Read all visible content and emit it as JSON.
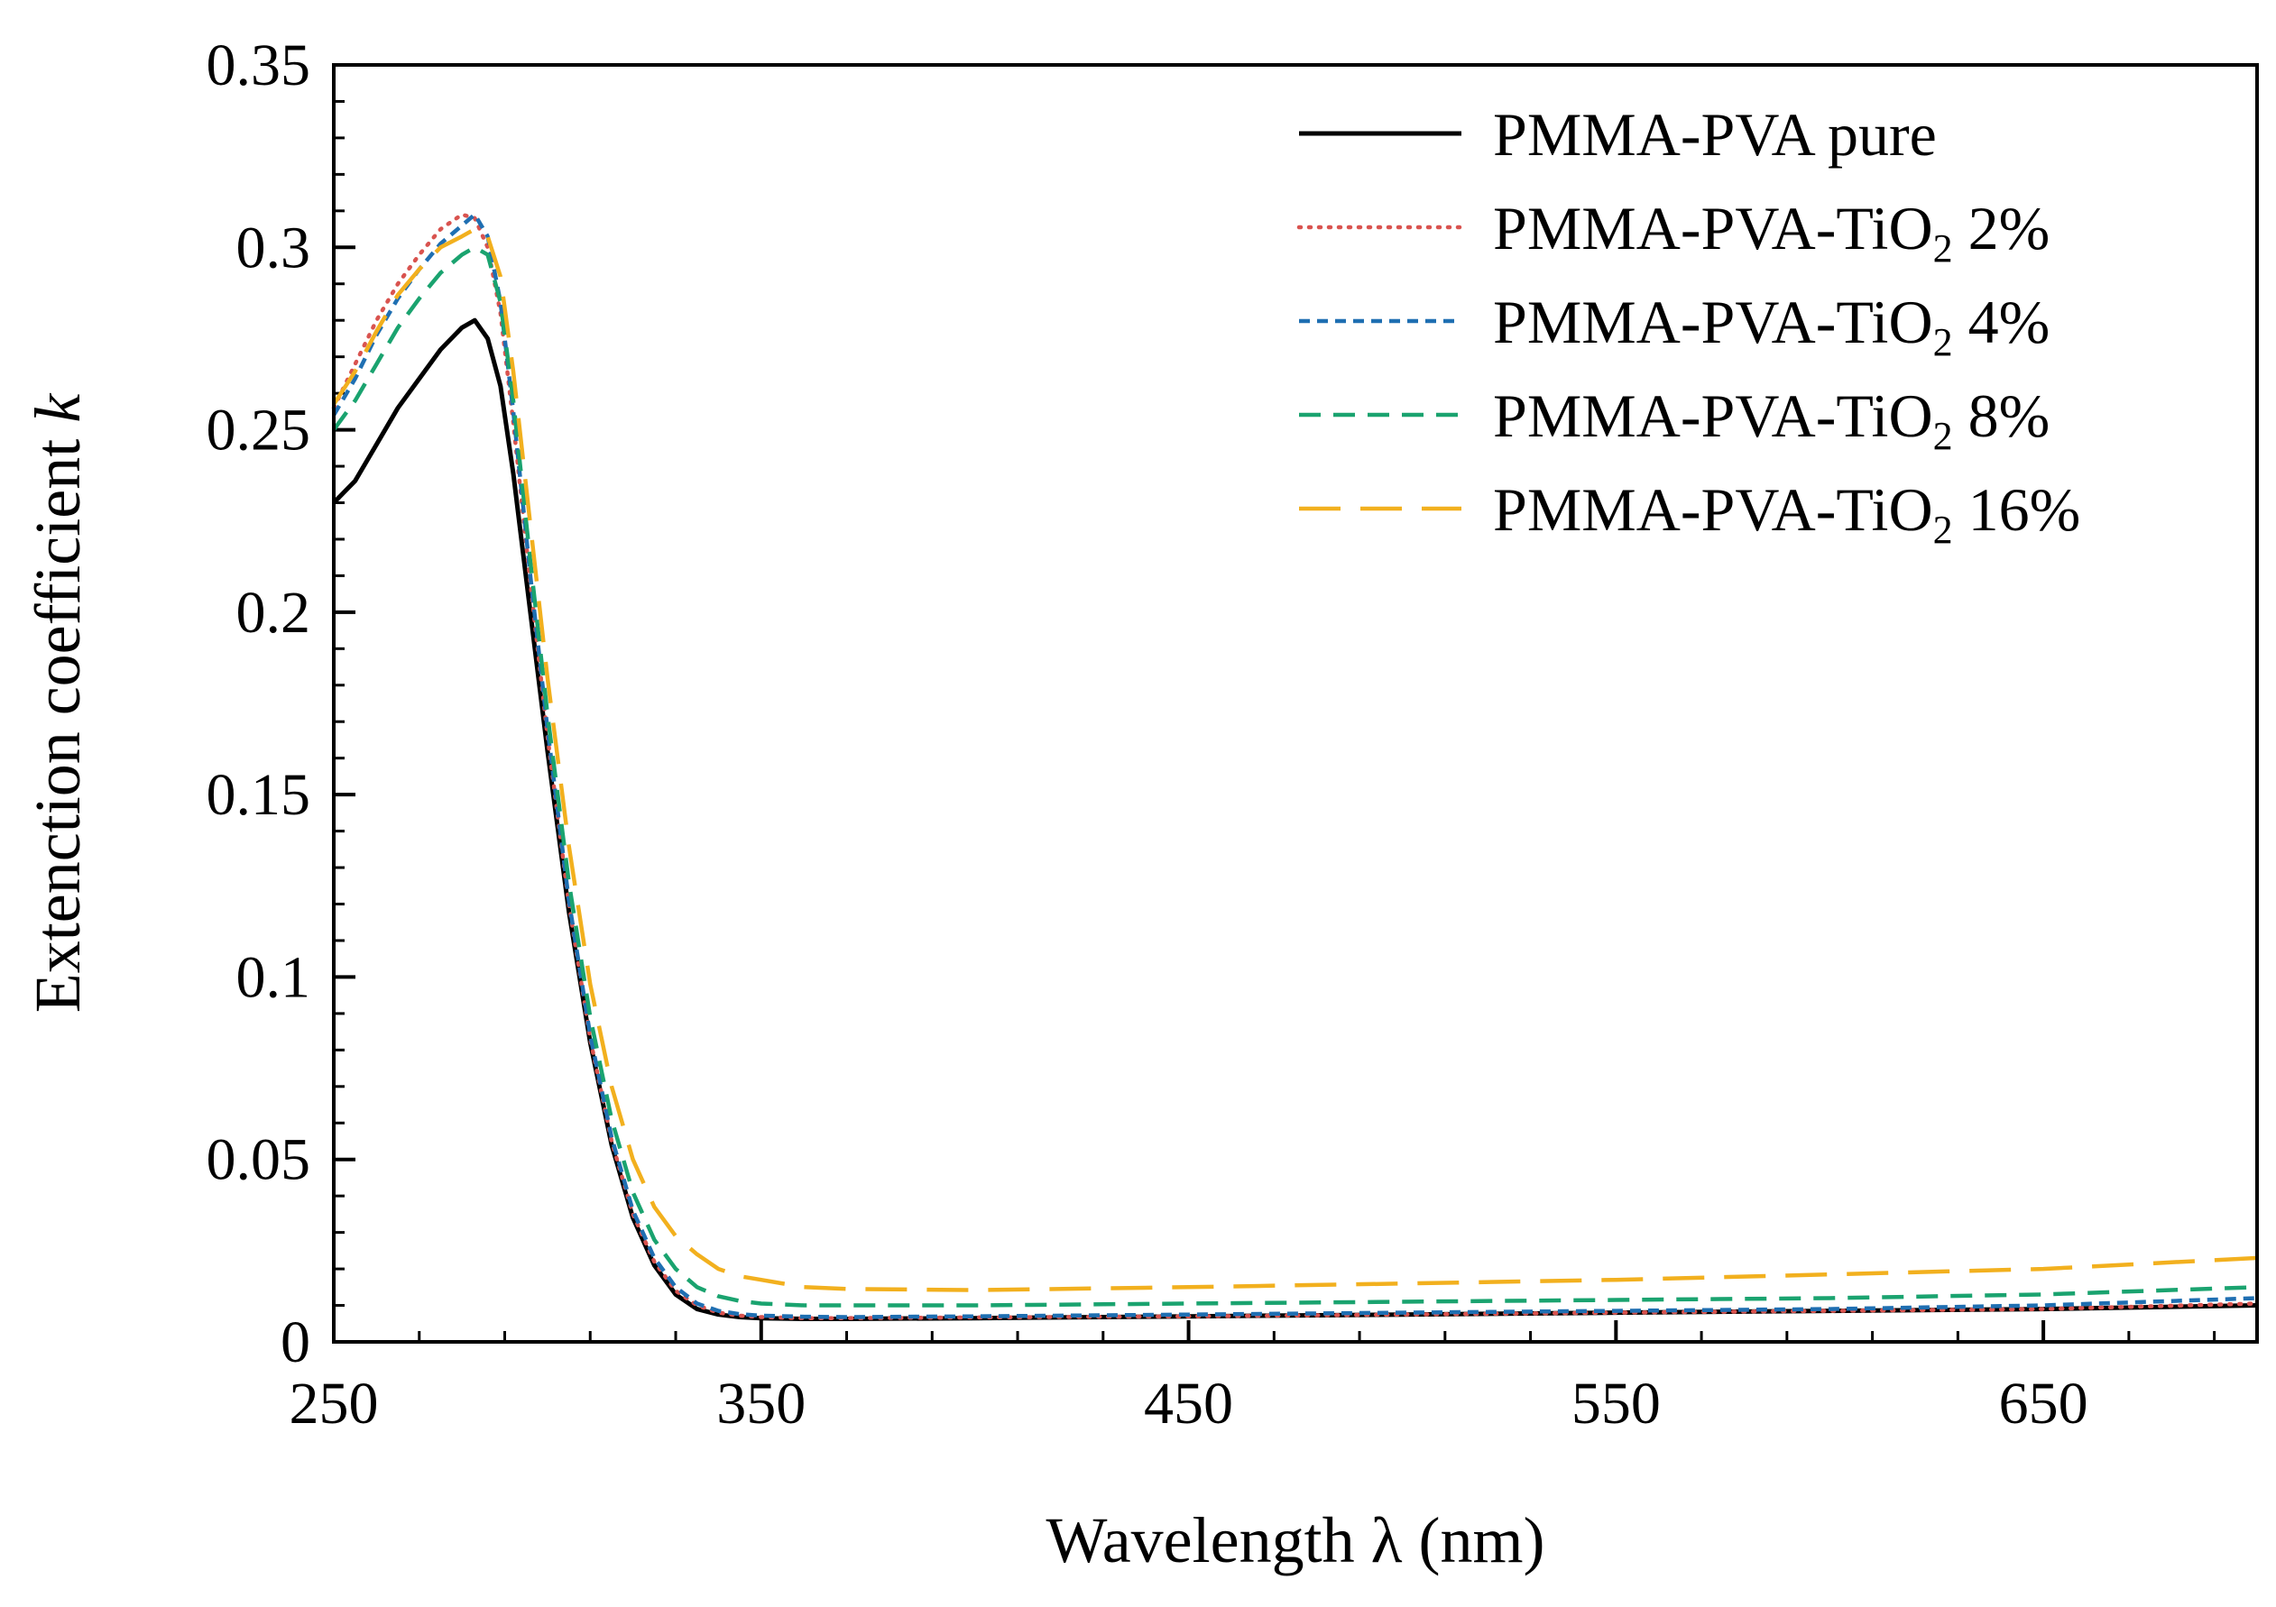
{
  "chart_data": {
    "type": "line",
    "title": "",
    "xlabel": "Wavelength λ (nm)",
    "ylabel": {
      "main": "Extenction coefficient ",
      "italic": "k"
    },
    "xlim": [
      250,
      700
    ],
    "ylim": [
      0,
      0.35
    ],
    "xticks": [
      250,
      350,
      450,
      550,
      650
    ],
    "yticks": [
      0,
      0.05,
      0.1,
      0.15,
      0.2,
      0.25,
      0.3,
      0.35
    ],
    "xtick_labels": [
      "250",
      "350",
      "450",
      "550",
      "650"
    ],
    "ytick_labels": [
      "0",
      "0.05",
      "0.1",
      "0.15",
      "0.2",
      "0.25",
      "0.3",
      "0.35"
    ],
    "grid": false,
    "legend_position": "top-right",
    "series": [
      {
        "name": "PMMA-PVA pure",
        "label_parts": [
          "PMMA-PVA pure"
        ],
        "color": "#000000",
        "dash": "solid",
        "x": [
          250,
          255,
          260,
          265,
          270,
          275,
          280,
          283,
          286,
          289,
          292,
          296,
          300,
          305,
          310,
          315,
          320,
          325,
          330,
          335,
          340,
          345,
          350,
          360,
          370,
          400,
          450,
          500,
          550,
          600,
          650,
          700
        ],
        "y": [
          0.23,
          0.236,
          0.246,
          0.256,
          0.264,
          0.272,
          0.278,
          0.28,
          0.275,
          0.262,
          0.238,
          0.2,
          0.162,
          0.118,
          0.082,
          0.054,
          0.034,
          0.021,
          0.013,
          0.009,
          0.0075,
          0.0068,
          0.0065,
          0.0063,
          0.0063,
          0.0065,
          0.007,
          0.0075,
          0.008,
          0.0085,
          0.009,
          0.01
        ]
      },
      {
        "name": "PMMA-PVA-TiO₂ 2%",
        "label_parts": [
          "PMMA-PVA-TiO",
          "2",
          " 2%"
        ],
        "color": "#d9534f",
        "dash": "dotted",
        "x": [
          250,
          255,
          260,
          265,
          270,
          275,
          280,
          283,
          286,
          289,
          292,
          296,
          300,
          305,
          310,
          315,
          320,
          325,
          330,
          335,
          340,
          345,
          350,
          360,
          370,
          400,
          450,
          500,
          550,
          600,
          650,
          700
        ],
        "y": [
          0.256,
          0.268,
          0.28,
          0.29,
          0.298,
          0.305,
          0.309,
          0.308,
          0.3,
          0.282,
          0.252,
          0.208,
          0.166,
          0.12,
          0.083,
          0.055,
          0.035,
          0.022,
          0.014,
          0.01,
          0.008,
          0.0072,
          0.0068,
          0.0065,
          0.0065,
          0.0067,
          0.007,
          0.0075,
          0.008,
          0.0085,
          0.009,
          0.0105
        ]
      },
      {
        "name": "PMMA-PVA-TiO₂ 4%",
        "label_parts": [
          "PMMA-PVA-TiO",
          "2",
          " 4%"
        ],
        "color": "#1f6fb2",
        "dash": "short-dash",
        "x": [
          250,
          255,
          260,
          265,
          270,
          275,
          280,
          283,
          286,
          289,
          292,
          296,
          300,
          305,
          310,
          315,
          320,
          325,
          330,
          335,
          340,
          345,
          350,
          360,
          370,
          400,
          450,
          500,
          550,
          600,
          650,
          700
        ],
        "y": [
          0.254,
          0.264,
          0.276,
          0.286,
          0.294,
          0.301,
          0.306,
          0.309,
          0.303,
          0.285,
          0.255,
          0.21,
          0.168,
          0.121,
          0.084,
          0.056,
          0.036,
          0.023,
          0.015,
          0.0105,
          0.0085,
          0.0076,
          0.0072,
          0.0069,
          0.0068,
          0.007,
          0.0075,
          0.008,
          0.0085,
          0.009,
          0.01,
          0.012
        ]
      },
      {
        "name": "PMMA-PVA-TiO₂ 8%",
        "label_parts": [
          "PMMA-PVA-TiO",
          "2",
          " 8%"
        ],
        "color": "#1aa36f",
        "dash": "dash",
        "x": [
          250,
          255,
          260,
          265,
          270,
          275,
          280,
          283,
          286,
          289,
          292,
          296,
          300,
          305,
          310,
          315,
          320,
          325,
          330,
          335,
          340,
          345,
          350,
          360,
          370,
          400,
          450,
          500,
          550,
          600,
          650,
          700
        ],
        "y": [
          0.25,
          0.258,
          0.268,
          0.278,
          0.286,
          0.293,
          0.298,
          0.3,
          0.298,
          0.285,
          0.258,
          0.214,
          0.172,
          0.126,
          0.089,
          0.061,
          0.041,
          0.028,
          0.02,
          0.015,
          0.0125,
          0.0112,
          0.0105,
          0.01,
          0.01,
          0.01,
          0.0105,
          0.011,
          0.0115,
          0.012,
          0.013,
          0.015
        ]
      },
      {
        "name": "PMMA-PVA-TiO₂ 16%",
        "label_parts": [
          "PMMA-PVA-TiO",
          "2",
          " 16%"
        ],
        "color": "#f2b01e",
        "dash": "long-dash",
        "x": [
          250,
          255,
          260,
          265,
          270,
          275,
          280,
          283,
          286,
          289,
          292,
          296,
          300,
          305,
          310,
          315,
          320,
          325,
          330,
          335,
          340,
          345,
          350,
          360,
          370,
          400,
          450,
          500,
          550,
          600,
          650,
          700
        ],
        "y": [
          0.257,
          0.266,
          0.277,
          0.287,
          0.294,
          0.3,
          0.303,
          0.305,
          0.303,
          0.292,
          0.266,
          0.224,
          0.182,
          0.136,
          0.098,
          0.07,
          0.05,
          0.037,
          0.029,
          0.024,
          0.02,
          0.018,
          0.017,
          0.015,
          0.0145,
          0.0142,
          0.015,
          0.016,
          0.017,
          0.0185,
          0.02,
          0.023
        ]
      }
    ]
  }
}
